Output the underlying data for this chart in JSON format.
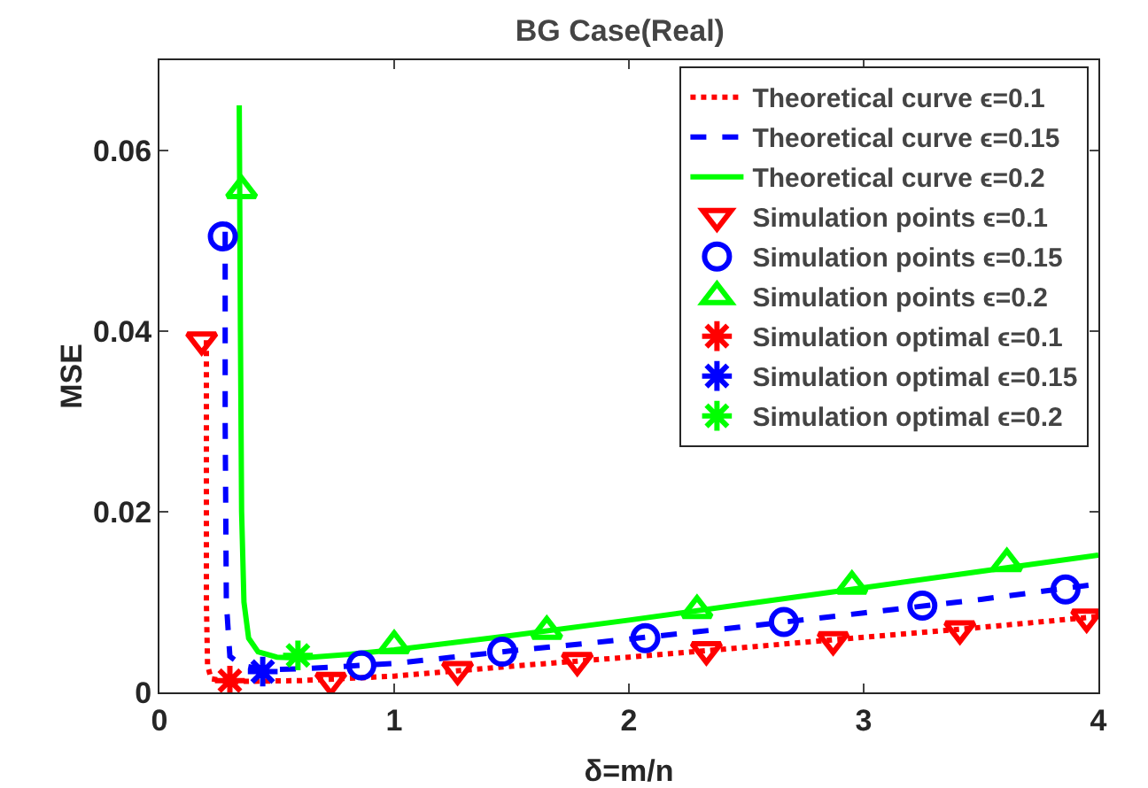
{
  "chart_data": {
    "type": "line",
    "title": "BG Case(Real)",
    "xlabel": "δ=m/n",
    "ylabel": "MSE",
    "xlim": [
      0,
      4
    ],
    "ylim": [
      0,
      0.07
    ],
    "xticks": [
      0,
      1,
      2,
      3,
      4
    ],
    "yticks": [
      0,
      0.02,
      0.04,
      0.06
    ],
    "grid": false,
    "legend": "top right",
    "series": [
      {
        "name": "Theoretical curve ϵ=0.1",
        "color": "#ff0000",
        "line_style": "dotted",
        "marker": "none",
        "x": [
          0.2,
          0.2,
          0.205,
          0.22,
          0.3,
          0.6,
          1,
          1.5,
          2,
          2.5,
          3,
          3.5,
          4
        ],
        "values": [
          0.039,
          0.01,
          0.003,
          0.0015,
          0.0012,
          0.0013,
          0.0018,
          0.0029,
          0.0039,
          0.005,
          0.0061,
          0.0072,
          0.0084
        ]
      },
      {
        "name": "Theoretical curve ϵ=0.15",
        "color": "#0000ff",
        "line_style": "dashed",
        "marker": "none",
        "x": [
          0.28,
          0.28,
          0.285,
          0.3,
          0.35,
          0.45,
          0.6,
          1,
          1.5,
          2,
          2.5,
          3,
          3.5,
          4
        ],
        "values": [
          0.051,
          0.03,
          0.01,
          0.004,
          0.003,
          0.0025,
          0.0026,
          0.0032,
          0.0046,
          0.0059,
          0.0073,
          0.0088,
          0.0103,
          0.012
        ]
      },
      {
        "name": "Theoretical curve ϵ=0.2",
        "color": "#00ff00",
        "line_style": "solid",
        "marker": "none",
        "x": [
          0.34,
          0.345,
          0.35,
          0.36,
          0.38,
          0.42,
          0.5,
          0.6,
          0.8,
          1,
          1.5,
          2,
          2.5,
          3,
          3.5,
          4
        ],
        "values": [
          0.065,
          0.04,
          0.02,
          0.01,
          0.006,
          0.0045,
          0.0039,
          0.0038,
          0.0042,
          0.0047,
          0.0063,
          0.008,
          0.0098,
          0.0116,
          0.0134,
          0.0152
        ]
      },
      {
        "name": "Simulation points ϵ=0.1",
        "type": "scatter",
        "color": "#ff0000",
        "marker": "triangle-down",
        "x": [
          0.18,
          0.73,
          1.27,
          1.78,
          2.33,
          2.87,
          3.41,
          3.95
        ],
        "values": [
          0.039,
          0.0013,
          0.0025,
          0.0035,
          0.0047,
          0.0058,
          0.007,
          0.0083
        ]
      },
      {
        "name": "Simulation points ϵ=0.15",
        "type": "scatter",
        "color": "#0000ff",
        "marker": "circle",
        "x": [
          0.27,
          0.86,
          1.46,
          2.07,
          2.66,
          3.25,
          3.86
        ],
        "values": [
          0.0505,
          0.003,
          0.0045,
          0.006,
          0.0078,
          0.0096,
          0.0114
        ]
      },
      {
        "name": "Simulation points ϵ=0.2",
        "type": "scatter",
        "color": "#00ff00",
        "marker": "triangle",
        "x": [
          0.35,
          1.0,
          1.65,
          2.29,
          2.95,
          3.61
        ],
        "values": [
          0.0556,
          0.0052,
          0.0068,
          0.0091,
          0.0118,
          0.0143
        ]
      },
      {
        "name": "Simulation optimal ϵ=0.1",
        "type": "scatter",
        "color": "#ff0000",
        "marker": "cross",
        "x": [
          0.3
        ],
        "values": [
          0.0013
        ]
      },
      {
        "name": "Simulation optimal ϵ=0.15",
        "type": "scatter",
        "color": "#0000ff",
        "marker": "cross",
        "x": [
          0.44
        ],
        "values": [
          0.0023
        ]
      },
      {
        "name": "Simulation optimal ϵ=0.2",
        "type": "scatter",
        "color": "#00ff00",
        "marker": "cross",
        "x": [
          0.59
        ],
        "values": [
          0.0041
        ]
      }
    ]
  }
}
